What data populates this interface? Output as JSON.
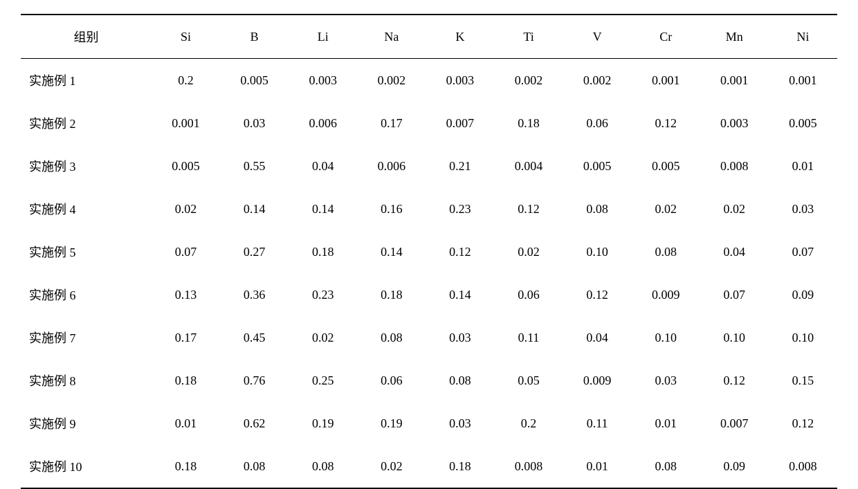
{
  "table": {
    "type": "table",
    "columns": [
      "组别",
      "Si",
      "B",
      "Li",
      "Na",
      "K",
      "Ti",
      "V",
      "Cr",
      "Mn",
      "Ni"
    ],
    "rows": [
      [
        "实施例 1",
        "0.2",
        "0.005",
        "0.003",
        "0.002",
        "0.003",
        "0.002",
        "0.002",
        "0.001",
        "0.001",
        "0.001"
      ],
      [
        "实施例 2",
        "0.001",
        "0.03",
        "0.006",
        "0.17",
        "0.007",
        "0.18",
        "0.06",
        "0.12",
        "0.003",
        "0.005"
      ],
      [
        "实施例 3",
        "0.005",
        "0.55",
        "0.04",
        "0.006",
        "0.21",
        "0.004",
        "0.005",
        "0.005",
        "0.008",
        "0.01"
      ],
      [
        "实施例 4",
        "0.02",
        "0.14",
        "0.14",
        "0.16",
        "0.23",
        "0.12",
        "0.08",
        "0.02",
        "0.02",
        "0.03"
      ],
      [
        "实施例 5",
        "0.07",
        "0.27",
        "0.18",
        "0.14",
        "0.12",
        "0.02",
        "0.10",
        "0.08",
        "0.04",
        "0.07"
      ],
      [
        "实施例 6",
        "0.13",
        "0.36",
        "0.23",
        "0.18",
        "0.14",
        "0.06",
        "0.12",
        "0.009",
        "0.07",
        "0.09"
      ],
      [
        "实施例 7",
        "0.17",
        "0.45",
        "0.02",
        "0.08",
        "0.03",
        "0.11",
        "0.04",
        "0.10",
        "0.10",
        "0.10"
      ],
      [
        "实施例 8",
        "0.18",
        "0.76",
        "0.25",
        "0.06",
        "0.08",
        "0.05",
        "0.009",
        "0.03",
        "0.12",
        "0.15"
      ],
      [
        "实施例 9",
        "0.01",
        "0.62",
        "0.19",
        "0.19",
        "0.03",
        "0.2",
        "0.11",
        "0.01",
        "0.007",
        "0.12"
      ],
      [
        "实施例 10",
        "0.18",
        "0.08",
        "0.08",
        "0.02",
        "0.18",
        "0.008",
        "0.01",
        "0.08",
        "0.09",
        "0.008"
      ]
    ],
    "styling": {
      "background_color": "#ffffff",
      "text_color": "#000000",
      "border_color": "#000000",
      "top_border_width": 2,
      "header_bottom_border_width": 1.5,
      "bottom_border_width": 2,
      "fontsize": 18,
      "cell_padding_vertical": 18,
      "cell_padding_horizontal": 4,
      "first_col_align": "left",
      "other_col_align": "center"
    }
  }
}
